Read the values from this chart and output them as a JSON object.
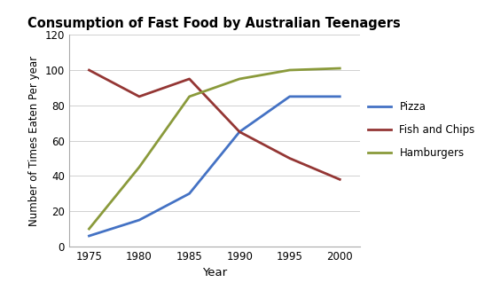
{
  "title": "Consumption of Fast Food by Australian Teenagers",
  "xlabel": "Year",
  "ylabel": "Number of Times Eaten Per year",
  "years": [
    1975,
    1980,
    1985,
    1990,
    1995,
    2000
  ],
  "pizza": [
    6,
    15,
    30,
    65,
    85,
    85
  ],
  "fish_and_chips": [
    100,
    85,
    95,
    65,
    50,
    38
  ],
  "hamburgers": [
    10,
    45,
    85,
    95,
    100,
    101
  ],
  "pizza_color": "#4472C4",
  "fish_color": "#943634",
  "hamburgers_color": "#8A9A3B",
  "ylim": [
    0,
    120
  ],
  "yticks": [
    0,
    20,
    40,
    60,
    80,
    100,
    120
  ],
  "xticks": [
    1975,
    1980,
    1985,
    1990,
    1995,
    2000
  ],
  "linewidth": 2.0,
  "legend_labels": [
    "Pizza",
    "Fish and Chips",
    "Hamburgers"
  ],
  "background_color": "#ffffff"
}
